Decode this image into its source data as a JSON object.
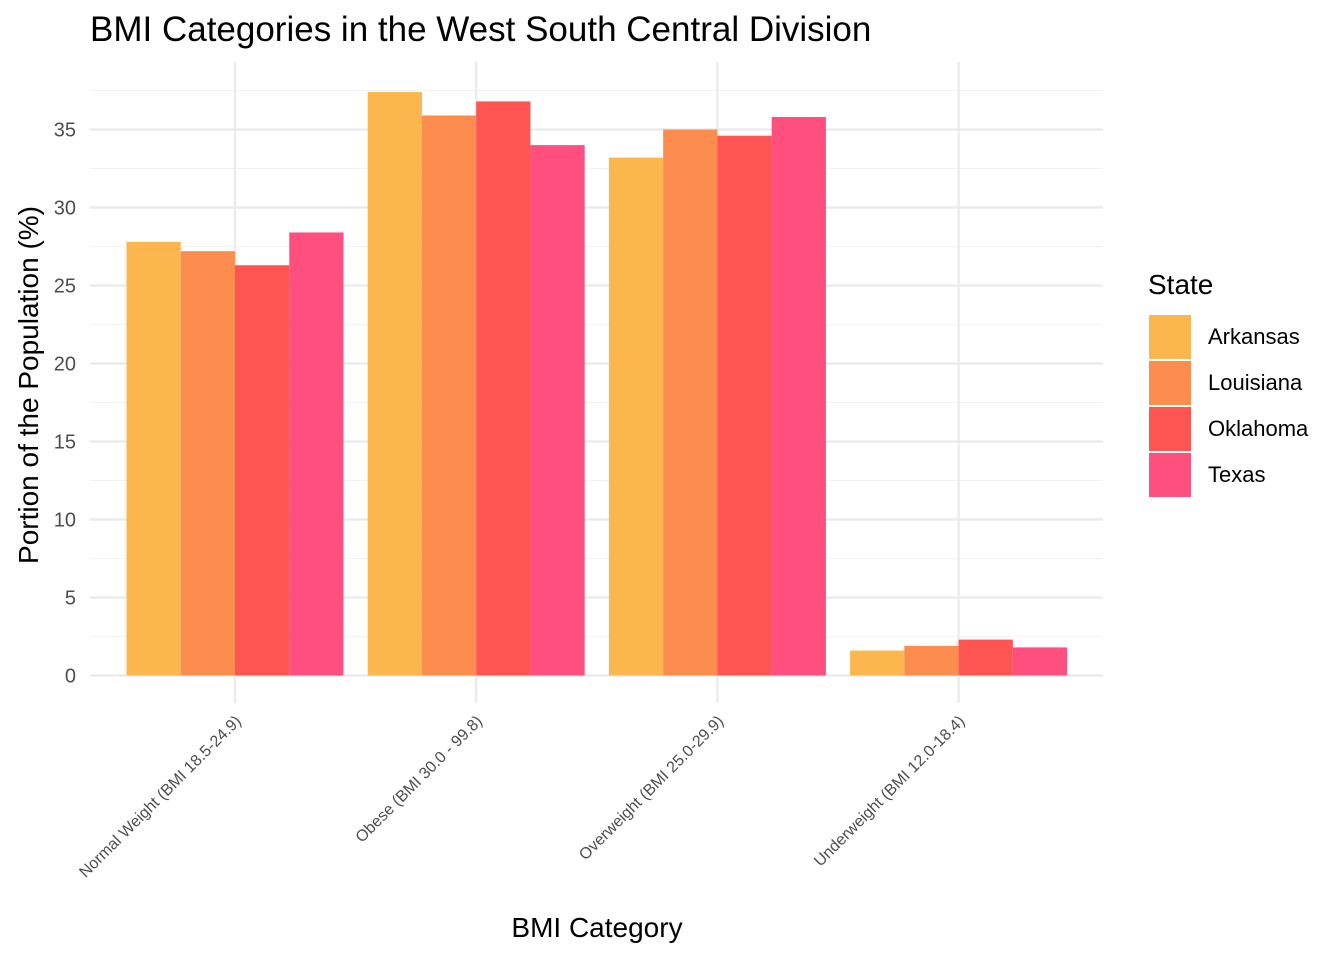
{
  "chart_data": {
    "type": "bar",
    "title": "BMI Categories in the West South Central Division",
    "xlabel": "BMI Category",
    "ylabel": "Portion of the Population (%)",
    "categories": [
      "Normal Weight (BMI 18.5-24.9)",
      "Obese (BMI 30.0 - 99.8)",
      "Overweight (BMI 25.0-29.9)",
      "Underweight (BMI 12.0-18.4)"
    ],
    "series": [
      {
        "name": "Arkansas",
        "color": "#FBB74E",
        "values": [
          27.8,
          37.4,
          33.2,
          1.6
        ]
      },
      {
        "name": "Louisiana",
        "color": "#FC8D4F",
        "values": [
          27.2,
          35.9,
          35.0,
          1.9
        ]
      },
      {
        "name": "Oklahoma",
        "color": "#FE5452",
        "values": [
          26.3,
          36.8,
          34.6,
          2.3
        ]
      },
      {
        "name": "Texas",
        "color": "#FF4F7F",
        "values": [
          28.4,
          34.0,
          35.8,
          1.8
        ]
      }
    ],
    "ylim": [
      0,
      39
    ],
    "yticks": [
      0,
      5,
      10,
      15,
      20,
      25,
      30,
      35
    ],
    "grid": true,
    "legend": {
      "title": "State",
      "position": "right"
    }
  }
}
